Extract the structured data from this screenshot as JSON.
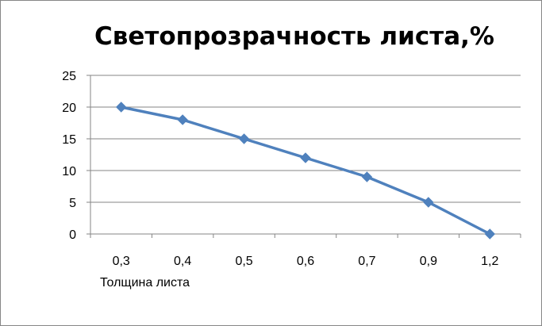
{
  "chart_data": {
    "type": "line",
    "title": "Светопрозрачность листа,%",
    "xlabel": "Толщина листа",
    "ylabel": "",
    "categories": [
      "0,3",
      "0,4",
      "0,5",
      "0,6",
      "0,7",
      "0,9",
      "1,2"
    ],
    "series": [
      {
        "values": [
          20,
          18,
          15,
          12,
          9,
          5,
          0
        ],
        "color": "#4F81BD",
        "marker": "diamond"
      }
    ],
    "ylim": [
      0,
      25
    ],
    "yticks": [
      "0",
      "5",
      "10",
      "15",
      "20",
      "25"
    ],
    "grid": true,
    "legend": "none"
  }
}
